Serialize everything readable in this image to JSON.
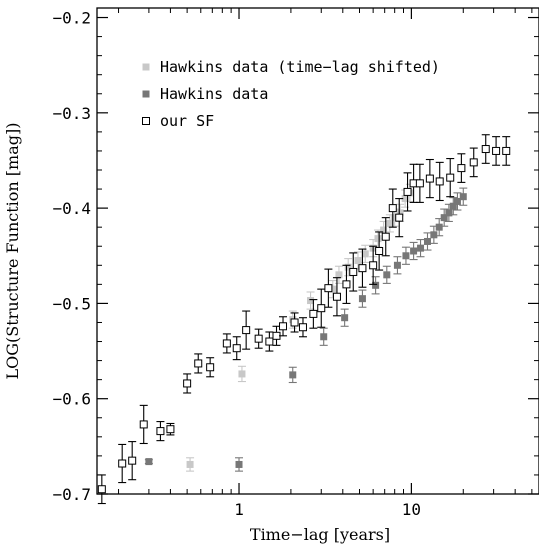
{
  "chart_data": {
    "type": "scatter",
    "xlabel": "Time−lag [years]",
    "ylabel": "LOG(Structure Function [mag])",
    "x_scale": "log",
    "xlim": [
      0.15,
      55
    ],
    "ylim": [
      -0.7,
      -0.19
    ],
    "x_ticks": [
      {
        "value": 1,
        "label": "1"
      },
      {
        "value": 10,
        "label": "10"
      }
    ],
    "y_ticks": [
      {
        "value": -0.2,
        "label": "−0.2"
      },
      {
        "value": -0.3,
        "label": "−0.3"
      },
      {
        "value": -0.4,
        "label": "−0.4"
      },
      {
        "value": -0.5,
        "label": "−0.5"
      },
      {
        "value": -0.6,
        "label": "−0.6"
      },
      {
        "value": -0.7,
        "label": "−0.7"
      }
    ],
    "legend_position": "top-left",
    "series": [
      {
        "name": "Hawkins data (time−lag shifted)",
        "marker": "filled-square",
        "color": "#c8c8c8",
        "points": [
          [
            0.52,
            -0.669,
            0.007
          ],
          [
            1.04,
            -0.574,
            0.008
          ],
          [
            2.05,
            -0.517,
            0.009
          ],
          [
            2.6,
            -0.497,
            0.009
          ],
          [
            3.5,
            -0.485,
            0.009
          ],
          [
            3.8,
            -0.47,
            0.009
          ],
          [
            4.3,
            -0.462,
            0.009
          ],
          [
            4.9,
            -0.455,
            0.009
          ],
          [
            5.4,
            -0.448,
            0.009
          ],
          [
            6.0,
            -0.442,
            0.009
          ],
          [
            6.4,
            -0.432,
            0.009
          ],
          [
            6.9,
            -0.423,
            0.009
          ],
          [
            7.5,
            -0.416,
            0.009
          ],
          [
            8.0,
            -0.41,
            0.009
          ],
          [
            8.6,
            -0.405,
            0.009
          ],
          [
            9.2,
            -0.39,
            0.009
          ],
          [
            9.8,
            -0.384,
            0.009
          ]
        ]
      },
      {
        "name": "Hawkins data",
        "marker": "filled-square",
        "color": "#777777",
        "points": [
          [
            0.3,
            -0.666,
            0.002
          ],
          [
            1.0,
            -0.669,
            0.007
          ],
          [
            2.05,
            -0.575,
            0.008
          ],
          [
            3.1,
            -0.535,
            0.009
          ],
          [
            4.1,
            -0.515,
            0.009
          ],
          [
            5.2,
            -0.495,
            0.009
          ],
          [
            6.2,
            -0.481,
            0.009
          ],
          [
            7.2,
            -0.47,
            0.009
          ],
          [
            8.3,
            -0.46,
            0.009
          ],
          [
            9.3,
            -0.45,
            0.009
          ],
          [
            10.3,
            -0.445,
            0.009
          ],
          [
            11.3,
            -0.442,
            0.009
          ],
          [
            12.4,
            -0.435,
            0.009
          ],
          [
            13.5,
            -0.428,
            0.009
          ],
          [
            14.5,
            -0.42,
            0.009
          ],
          [
            15.5,
            -0.41,
            0.009
          ],
          [
            16.5,
            -0.405,
            0.009
          ],
          [
            17.5,
            -0.398,
            0.009
          ],
          [
            18.5,
            -0.393,
            0.009
          ],
          [
            20.0,
            -0.388,
            0.009
          ]
        ]
      },
      {
        "name": "our SF",
        "marker": "open-square",
        "color": "#000000",
        "points": [
          [
            0.16,
            -0.695,
            0.015
          ],
          [
            0.21,
            -0.668,
            0.02
          ],
          [
            0.24,
            -0.665,
            0.02
          ],
          [
            0.28,
            -0.627,
            0.02
          ],
          [
            0.35,
            -0.634,
            0.01
          ],
          [
            0.4,
            -0.632,
            0.006
          ],
          [
            0.5,
            -0.584,
            0.01
          ],
          [
            0.58,
            -0.563,
            0.01
          ],
          [
            0.68,
            -0.567,
            0.01
          ],
          [
            0.85,
            -0.542,
            0.01
          ],
          [
            0.97,
            -0.547,
            0.012
          ],
          [
            1.1,
            -0.528,
            0.02
          ],
          [
            1.3,
            -0.537,
            0.01
          ],
          [
            1.5,
            -0.54,
            0.01
          ],
          [
            1.65,
            -0.534,
            0.01
          ],
          [
            1.8,
            -0.524,
            0.01
          ],
          [
            2.1,
            -0.52,
            0.01
          ],
          [
            2.35,
            -0.525,
            0.01
          ],
          [
            2.7,
            -0.511,
            0.015
          ],
          [
            3.0,
            -0.505,
            0.02
          ],
          [
            3.3,
            -0.484,
            0.02
          ],
          [
            3.7,
            -0.493,
            0.02
          ],
          [
            4.2,
            -0.48,
            0.02
          ],
          [
            4.6,
            -0.467,
            0.02
          ],
          [
            5.2,
            -0.463,
            0.02
          ],
          [
            6.0,
            -0.46,
            0.02
          ],
          [
            6.5,
            -0.445,
            0.02
          ],
          [
            7.1,
            -0.43,
            0.02
          ],
          [
            7.8,
            -0.4,
            0.02
          ],
          [
            8.5,
            -0.41,
            0.02
          ],
          [
            9.5,
            -0.383,
            0.02
          ],
          [
            10.3,
            -0.374,
            0.02
          ],
          [
            11.2,
            -0.374,
            0.02
          ],
          [
            12.8,
            -0.369,
            0.02
          ],
          [
            14.6,
            -0.372,
            0.02
          ],
          [
            16.8,
            -0.368,
            0.02
          ],
          [
            19.5,
            -0.358,
            0.015
          ],
          [
            23.0,
            -0.352,
            0.015
          ],
          [
            27.0,
            -0.338,
            0.015
          ],
          [
            31.0,
            -0.34,
            0.015
          ],
          [
            35.5,
            -0.34,
            0.015
          ]
        ]
      }
    ]
  }
}
